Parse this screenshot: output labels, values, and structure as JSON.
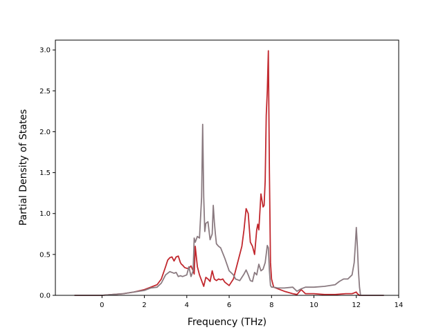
{
  "chart_data": {
    "type": "line",
    "title": "",
    "xlabel": "Frequency (THz)",
    "ylabel": "Partial Density of States",
    "xlim": [
      -2.2,
      14
    ],
    "ylim": [
      0,
      3.12
    ],
    "xticks": [
      0,
      2,
      4,
      6,
      8,
      10,
      12,
      14
    ],
    "yticks": [
      0.0,
      0.5,
      1.0,
      1.5,
      2.0,
      2.5,
      3.0
    ],
    "xtick_labels": [
      "0",
      "2",
      "4",
      "6",
      "8",
      "10",
      "12",
      "14"
    ],
    "ytick_labels": [
      "0.0",
      "0.5",
      "1.0",
      "1.5",
      "2.0",
      "2.5",
      "3.0"
    ],
    "grid": false,
    "legend": "none",
    "series": [
      {
        "color": "#c1272d",
        "x": [
          -1.3,
          0.0,
          0.5,
          1.0,
          1.5,
          2.0,
          2.3,
          2.6,
          2.8,
          3.0,
          3.1,
          3.2,
          3.3,
          3.4,
          3.5,
          3.6,
          3.7,
          3.75,
          3.8,
          3.9,
          4.0,
          4.1,
          4.2,
          4.3,
          4.35,
          4.4,
          4.5,
          4.6,
          4.7,
          4.8,
          4.9,
          5.0,
          5.1,
          5.2,
          5.3,
          5.4,
          5.5,
          5.6,
          5.7,
          5.8,
          5.9,
          6.0,
          6.2,
          6.3,
          6.4,
          6.5,
          6.6,
          6.7,
          6.8,
          6.9,
          7.0,
          7.1,
          7.2,
          7.3,
          7.35,
          7.4,
          7.5,
          7.6,
          7.65,
          7.7,
          7.75,
          7.8,
          7.85,
          7.9,
          7.95,
          8.0,
          8.1,
          8.3,
          8.6,
          9.0,
          9.2,
          9.4,
          9.6,
          10.0,
          10.5,
          11.0,
          11.5,
          11.8,
          11.9,
          12.0,
          12.05,
          12.1,
          12.15,
          12.2,
          13.3
        ],
        "y": [
          0.0,
          0.0,
          0.01,
          0.02,
          0.04,
          0.07,
          0.1,
          0.13,
          0.2,
          0.35,
          0.43,
          0.46,
          0.47,
          0.42,
          0.47,
          0.48,
          0.4,
          0.38,
          0.37,
          0.34,
          0.33,
          0.33,
          0.36,
          0.3,
          0.26,
          0.6,
          0.35,
          0.25,
          0.18,
          0.11,
          0.22,
          0.2,
          0.17,
          0.3,
          0.2,
          0.18,
          0.2,
          0.19,
          0.2,
          0.16,
          0.14,
          0.12,
          0.2,
          0.3,
          0.4,
          0.5,
          0.6,
          0.8,
          1.06,
          1.0,
          0.65,
          0.6,
          0.5,
          0.8,
          0.87,
          0.8,
          1.24,
          1.08,
          1.1,
          1.4,
          2.2,
          2.5,
          2.99,
          1.5,
          0.4,
          0.2,
          0.1,
          0.08,
          0.05,
          0.02,
          0.01,
          0.07,
          0.02,
          0.02,
          0.01,
          0.01,
          0.02,
          0.02,
          0.03,
          0.04,
          0.02,
          0.01,
          0.0,
          0.0,
          0.0
        ]
      },
      {
        "color": "#8a7a80",
        "x": [
          -1.3,
          0.0,
          0.5,
          1.0,
          1.5,
          2.0,
          2.3,
          2.6,
          2.8,
          3.0,
          3.2,
          3.4,
          3.5,
          3.6,
          3.7,
          3.8,
          4.0,
          4.1,
          4.2,
          4.3,
          4.35,
          4.4,
          4.5,
          4.6,
          4.7,
          4.75,
          4.8,
          4.85,
          4.9,
          5.0,
          5.1,
          5.2,
          5.25,
          5.3,
          5.35,
          5.4,
          5.5,
          5.6,
          5.8,
          6.0,
          6.2,
          6.3,
          6.5,
          6.7,
          6.8,
          6.9,
          7.0,
          7.1,
          7.2,
          7.3,
          7.4,
          7.5,
          7.6,
          7.7,
          7.8,
          7.85,
          7.9,
          7.95,
          8.0,
          8.1,
          8.3,
          8.6,
          9.0,
          9.2,
          9.4,
          9.6,
          10.0,
          10.5,
          11.0,
          11.2,
          11.4,
          11.6,
          11.8,
          11.9,
          11.95,
          12.0,
          12.05,
          12.1,
          12.15,
          12.2,
          13.3
        ],
        "y": [
          0.0,
          0.0,
          0.01,
          0.02,
          0.04,
          0.06,
          0.09,
          0.1,
          0.15,
          0.25,
          0.29,
          0.27,
          0.28,
          0.23,
          0.24,
          0.23,
          0.25,
          0.35,
          0.23,
          0.3,
          0.7,
          0.65,
          0.72,
          0.7,
          1.2,
          2.09,
          1.2,
          0.78,
          0.88,
          0.9,
          0.68,
          0.75,
          1.1,
          0.9,
          0.75,
          0.63,
          0.6,
          0.58,
          0.45,
          0.3,
          0.25,
          0.2,
          0.18,
          0.26,
          0.31,
          0.25,
          0.18,
          0.17,
          0.28,
          0.25,
          0.38,
          0.3,
          0.32,
          0.4,
          0.61,
          0.58,
          0.3,
          0.12,
          0.1,
          0.1,
          0.09,
          0.09,
          0.1,
          0.05,
          0.08,
          0.1,
          0.1,
          0.11,
          0.13,
          0.17,
          0.2,
          0.2,
          0.25,
          0.4,
          0.6,
          0.83,
          0.6,
          0.3,
          0.1,
          0.0,
          0.0
        ]
      }
    ]
  }
}
